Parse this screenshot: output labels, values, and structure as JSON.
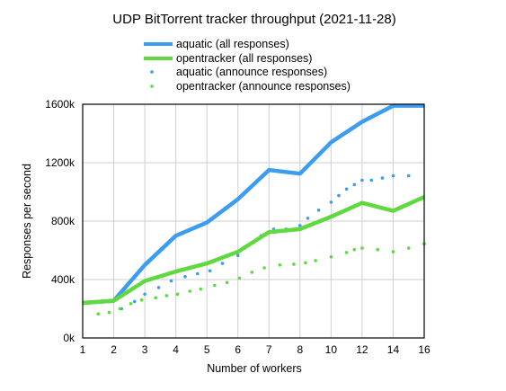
{
  "chart_data": {
    "type": "line",
    "title": "UDP BitTorrent tracker throughput (2021-11-28)",
    "xlabel": "Number of workers",
    "ylabel": "Responses per second",
    "x_ticks": [
      {
        "value": 1,
        "label": "1"
      },
      {
        "value": 2,
        "label": "2"
      },
      {
        "value": 3,
        "label": "3"
      },
      {
        "value": 4,
        "label": "4"
      },
      {
        "value": 5,
        "label": "5"
      },
      {
        "value": 6,
        "label": "6"
      },
      {
        "value": 7,
        "label": "7"
      },
      {
        "value": 8,
        "label": "8"
      },
      {
        "value": 10,
        "label": "10"
      },
      {
        "value": 12,
        "label": "12"
      },
      {
        "value": 14,
        "label": "14"
      },
      {
        "value": 16,
        "label": "16"
      }
    ],
    "y_ticks": [
      {
        "value": 0,
        "label": "0k"
      },
      {
        "value": 400000,
        "label": "400k"
      },
      {
        "value": 800000,
        "label": "800k"
      },
      {
        "value": 1200000,
        "label": "1200k"
      },
      {
        "value": 1600000,
        "label": "1600k"
      }
    ],
    "ylim": [
      0,
      1600000
    ],
    "grid": true,
    "legend_position": "top",
    "series": [
      {
        "name": "aquatic (all responses)",
        "style": "line",
        "color": "#3b9cf2",
        "x": [
          1,
          2,
          3,
          4,
          5,
          6,
          7,
          8,
          10,
          12,
          14,
          16
        ],
        "y": [
          240000,
          255000,
          500000,
          700000,
          790000,
          950000,
          1150000,
          1125000,
          1340000,
          1480000,
          1590000,
          1590000
        ]
      },
      {
        "name": "opentracker (all responses)",
        "style": "line",
        "color": "#5fd93f",
        "x": [
          1,
          2,
          3,
          4,
          5,
          6,
          7,
          8,
          10,
          12,
          14,
          16
        ],
        "y": [
          240000,
          255000,
          390000,
          455000,
          510000,
          590000,
          725000,
          745000,
          830000,
          925000,
          870000,
          965000
        ]
      },
      {
        "name": "aquatic (announce responses)",
        "style": "dots",
        "color": "#3b9cf2",
        "x": [
          2.25,
          2.67,
          3,
          3.45,
          3.85,
          4.3,
          4.7,
          5.1,
          5.5,
          6,
          6.75,
          7.15,
          7.55,
          8,
          8.5,
          9.2,
          10,
          10.5,
          11,
          11.5,
          12,
          12.6,
          13.3,
          14,
          15
        ],
        "y": [
          200000,
          250000,
          300000,
          345000,
          390000,
          420000,
          440000,
          460000,
          510000,
          565000,
          700000,
          745000,
          745000,
          770000,
          820000,
          875000,
          930000,
          975000,
          1020000,
          1050000,
          1080000,
          1080000,
          1095000,
          1110000,
          1110000
        ]
      },
      {
        "name": "opentracker (announce responses)",
        "style": "dots",
        "color": "#5fd93f",
        "x": [
          1.5,
          1.85,
          2.2,
          2.55,
          2.9,
          3.35,
          3.7,
          4.05,
          4.45,
          4.8,
          5.25,
          5.65,
          6.05,
          6.45,
          6.85,
          7.35,
          7.8,
          8.35,
          9,
          10,
          11,
          11.5,
          12,
          13,
          14,
          15,
          16
        ],
        "y": [
          165000,
          175000,
          200000,
          235000,
          260000,
          275000,
          290000,
          300000,
          320000,
          335000,
          360000,
          380000,
          410000,
          450000,
          480000,
          500000,
          505000,
          515000,
          530000,
          555000,
          585000,
          605000,
          615000,
          605000,
          590000,
          615000,
          645000
        ]
      }
    ]
  }
}
